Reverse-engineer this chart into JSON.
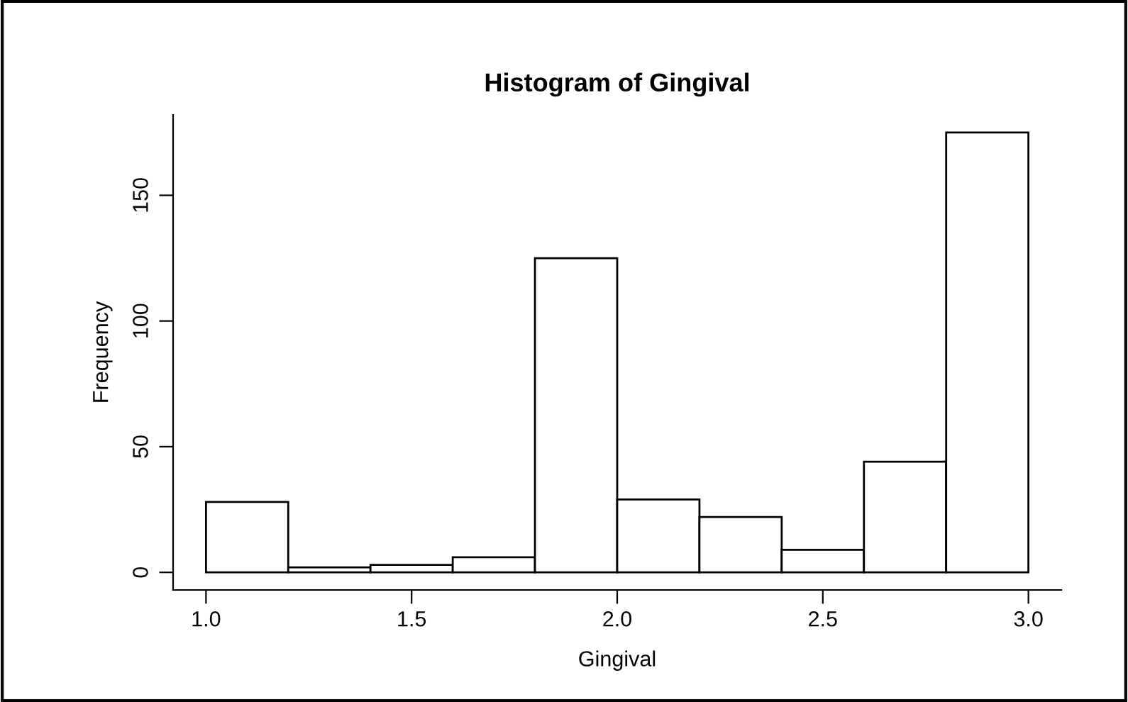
{
  "chart_data": {
    "type": "histogram",
    "title": "Histogram of Gingival",
    "xlabel": "Gingival",
    "ylabel": "Frequency",
    "bins": [
      1.0,
      1.2,
      1.4,
      1.6,
      1.8,
      2.0,
      2.2,
      2.4,
      2.6,
      2.8,
      3.0
    ],
    "values": [
      28,
      2,
      3,
      6,
      125,
      29,
      22,
      9,
      44,
      175
    ],
    "color": "#ffffff",
    "xlim": [
      0.92,
      3.08
    ],
    "ylim": [
      -7,
      182
    ],
    "xticks": [
      {
        "value": 1.0,
        "label": "1.0"
      },
      {
        "value": 1.5,
        "label": "1.5"
      },
      {
        "value": 2.0,
        "label": "2.0"
      },
      {
        "value": 2.5,
        "label": "2.5"
      },
      {
        "value": 3.0,
        "label": "3.0"
      }
    ],
    "yticks": [
      0,
      50,
      100,
      150
    ],
    "grid": false
  }
}
